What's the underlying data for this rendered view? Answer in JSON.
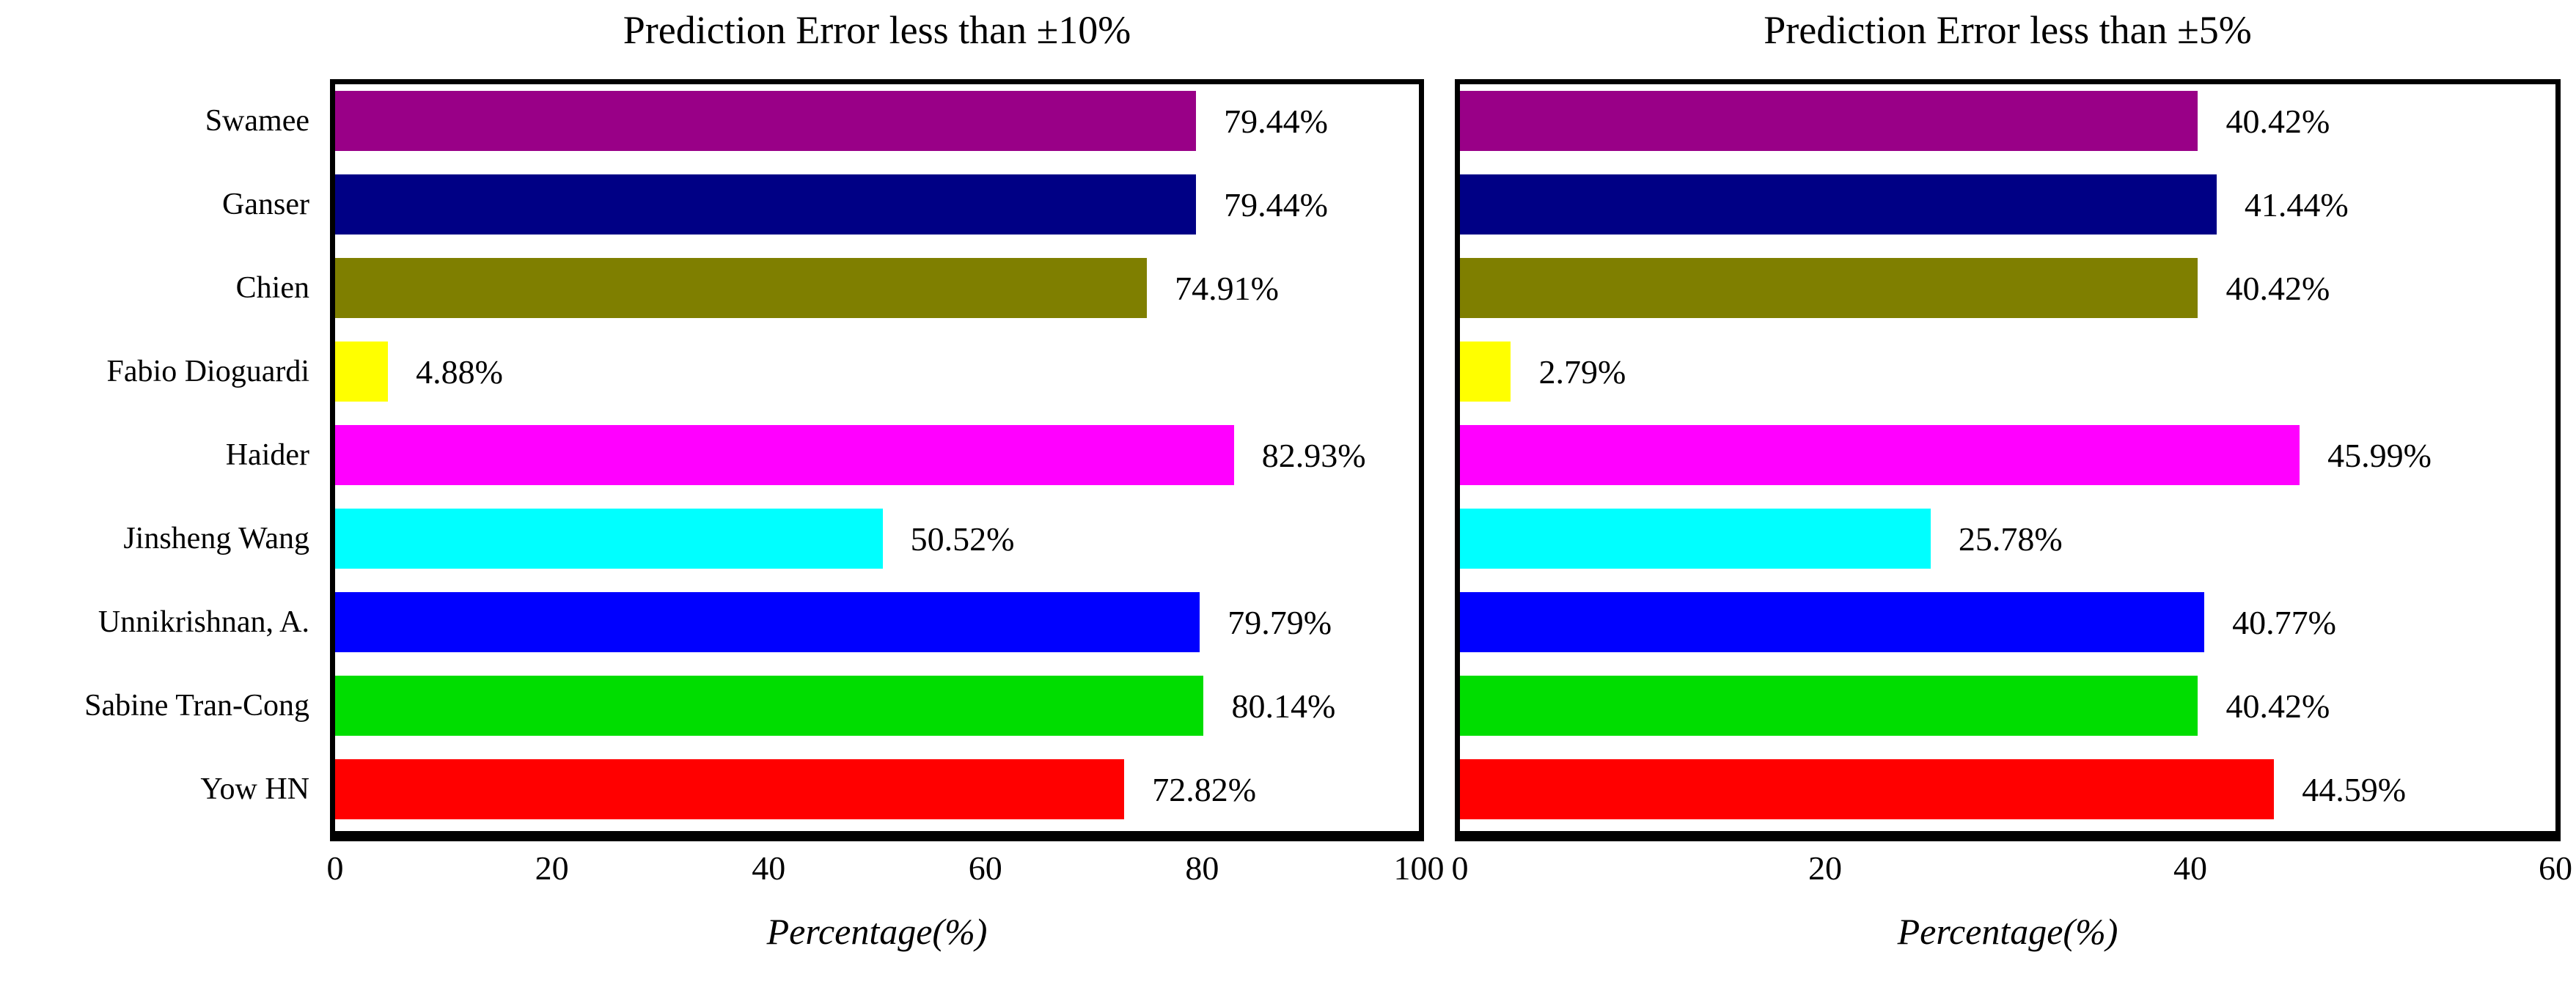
{
  "chart_data": [
    {
      "type": "bar",
      "orientation": "horizontal",
      "title": "Prediction Error less than ±10%",
      "categories": [
        "Swamee",
        "Ganser",
        "Chien",
        "Fabio Dioguardi",
        "Haider",
        "Jinsheng Wang",
        "Unnikrishnan, A.",
        "Sabine Tran-Cong",
        "Yow HN"
      ],
      "values": [
        79.44,
        79.44,
        74.91,
        4.88,
        82.93,
        50.52,
        79.79,
        80.14,
        72.82
      ],
      "value_labels": [
        "79.44%",
        "79.44%",
        "74.91%",
        "4.88%",
        "82.93%",
        "50.52%",
        "79.79%",
        "80.14%",
        "72.82%"
      ],
      "bar_colors": [
        "#990087",
        "#000085",
        "#7F7F00",
        "#FFFF00",
        "#FF00FF",
        "#00FFFF",
        "#0000FF",
        "#00DD00",
        "#FF0000"
      ],
      "xlabel": "Percentage(%)",
      "ylabel": "",
      "xlim": [
        0,
        100
      ],
      "xticks": [
        0,
        20,
        40,
        60,
        80,
        100
      ],
      "grid": "off",
      "legend": "none",
      "show_category_labels": true
    },
    {
      "type": "bar",
      "orientation": "horizontal",
      "title": "Prediction Error less than ±5%",
      "categories": [
        "Swamee",
        "Ganser",
        "Chien",
        "Fabio Dioguardi",
        "Haider",
        "Jinsheng Wang",
        "Unnikrishnan, A.",
        "Sabine Tran-Cong",
        "Yow HN"
      ],
      "values": [
        40.42,
        41.44,
        40.42,
        2.79,
        45.99,
        25.78,
        40.77,
        40.42,
        44.59
      ],
      "value_labels": [
        "40.42%",
        "41.44%",
        "40.42%",
        "2.79%",
        "45.99%",
        "25.78%",
        "40.77%",
        "40.42%",
        "44.59%"
      ],
      "bar_colors": [
        "#990087",
        "#000085",
        "#7F7F00",
        "#FFFF00",
        "#FF00FF",
        "#00FFFF",
        "#0000FF",
        "#00DD00",
        "#FF0000"
      ],
      "xlabel": "Percentage(%)",
      "ylabel": "",
      "xlim": [
        0,
        60
      ],
      "xticks": [
        0,
        20,
        40,
        60
      ],
      "grid": "off",
      "legend": "none",
      "show_category_labels": false
    }
  ]
}
